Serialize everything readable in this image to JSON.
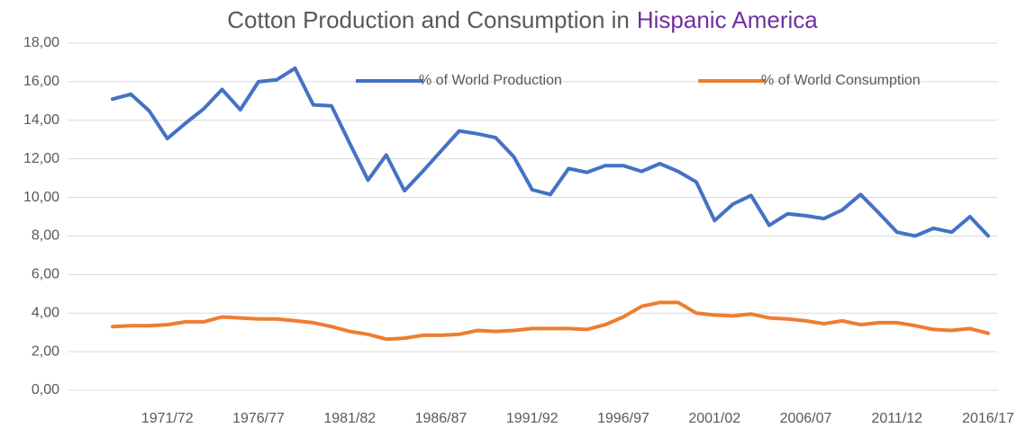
{
  "chart_data": {
    "type": "line",
    "title": [
      "Cotton Production and Consumption in",
      "Hispanic America"
    ],
    "title_colors": [
      "#595959",
      "#7030a0"
    ],
    "categories": [
      null,
      null,
      null,
      "1971/72",
      null,
      null,
      null,
      null,
      "1976/77",
      null,
      null,
      null,
      null,
      "1981/82",
      null,
      null,
      null,
      null,
      "1986/87",
      null,
      null,
      null,
      null,
      "1991/92",
      null,
      null,
      null,
      null,
      "1996/97",
      null,
      null,
      null,
      null,
      "2001/02",
      null,
      null,
      null,
      null,
      "2006/07",
      null,
      null,
      null,
      null,
      "2011/12",
      null,
      null,
      null,
      null,
      "2016/17"
    ],
    "series": [
      {
        "name": "% of World Production",
        "color": "#4472c4",
        "values": [
          15.1,
          15.35,
          14.5,
          13.05,
          13.85,
          14.6,
          15.6,
          14.55,
          16.0,
          16.1,
          16.7,
          14.8,
          14.75,
          12.8,
          10.9,
          12.2,
          10.35,
          11.35,
          12.4,
          13.45,
          13.3,
          13.1,
          12.1,
          10.4,
          10.15,
          11.5,
          11.3,
          11.65,
          11.65,
          11.35,
          11.75,
          11.35,
          10.8,
          8.8,
          9.65,
          10.1,
          8.55,
          9.15,
          9.05,
          8.9,
          9.35,
          10.15,
          9.2,
          8.2,
          8.0,
          8.4,
          8.2,
          9.0,
          8.0
        ]
      },
      {
        "name": "% of World Consumption",
        "color": "#ed7d31",
        "values": [
          3.3,
          3.35,
          3.35,
          3.4,
          3.55,
          3.55,
          3.8,
          3.75,
          3.7,
          3.7,
          3.6,
          3.5,
          3.3,
          3.05,
          2.9,
          2.65,
          2.7,
          2.85,
          2.85,
          2.9,
          3.1,
          3.05,
          3.1,
          3.2,
          3.2,
          3.2,
          3.15,
          3.4,
          3.8,
          4.35,
          4.55,
          4.55,
          4.0,
          3.9,
          3.85,
          3.95,
          3.75,
          3.7,
          3.6,
          3.45,
          3.6,
          3.4,
          3.5,
          3.5,
          3.35,
          3.15,
          3.1,
          3.2,
          2.95
        ]
      }
    ],
    "ylim": [
      0,
      18
    ],
    "yticks": [
      {
        "value": 0,
        "label": "0,00"
      },
      {
        "value": 2,
        "label": "2,00"
      },
      {
        "value": 4,
        "label": "4,00"
      },
      {
        "value": 6,
        "label": "6,00"
      },
      {
        "value": 8,
        "label": "8,00"
      },
      {
        "value": 10,
        "label": "10,00"
      },
      {
        "value": 12,
        "label": "12,00"
      },
      {
        "value": 14,
        "label": "14,00"
      },
      {
        "value": 16,
        "label": "16,00"
      },
      {
        "value": 18,
        "label": "18,00"
      }
    ],
    "grid": true,
    "legend": "top"
  }
}
